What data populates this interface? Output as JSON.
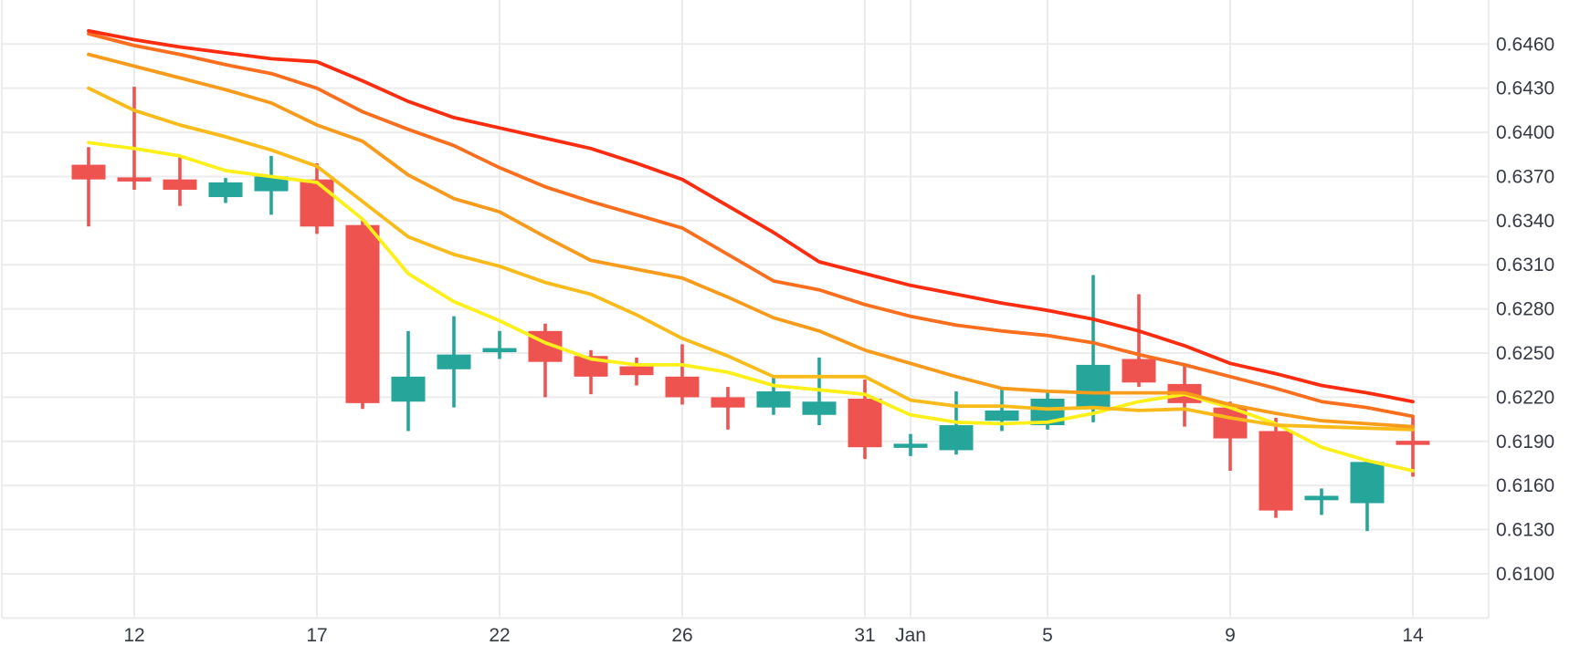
{
  "colors": {
    "background": "#ffffff",
    "grid": "#ececec",
    "axis_text": "#363a45",
    "candle_up": "#26a69a",
    "candle_down": "#ef5350"
  },
  "chart_data": {
    "type": "candlestick",
    "title": "",
    "xlabel": "",
    "ylabel": "",
    "grid": true,
    "legend_position": "none",
    "y_axis": {
      "side": "right",
      "labels": [
        "0.6460",
        "0.6430",
        "0.6400",
        "0.6370",
        "0.6340",
        "0.6310",
        "0.6280",
        "0.6250",
        "0.6220",
        "0.6190",
        "0.6160",
        "0.6130",
        "0.6100"
      ],
      "step": 0.003,
      "ylim": [
        0.607,
        0.649
      ]
    },
    "x_axis": {
      "ticks": [
        {
          "candle_index": 1,
          "label": "12"
        },
        {
          "candle_index": 5,
          "label": "17"
        },
        {
          "candle_index": 9,
          "label": "22"
        },
        {
          "candle_index": 13,
          "label": "26"
        },
        {
          "candle_index": 17,
          "label": "31"
        },
        {
          "candle_index": 18,
          "label": "Jan"
        },
        {
          "candle_index": 21,
          "label": "5"
        },
        {
          "candle_index": 25,
          "label": "9"
        },
        {
          "candle_index": 29,
          "label": "14"
        }
      ]
    },
    "candles": [
      {
        "o": 0.6378,
        "h": 0.639,
        "l": 0.6336,
        "c": 0.6368
      },
      {
        "o": 0.6369,
        "h": 0.6431,
        "l": 0.6361,
        "c": 0.6367
      },
      {
        "o": 0.6368,
        "h": 0.6383,
        "l": 0.635,
        "c": 0.6361
      },
      {
        "o": 0.6356,
        "h": 0.6369,
        "l": 0.6352,
        "c": 0.6366
      },
      {
        "o": 0.636,
        "h": 0.6384,
        "l": 0.6344,
        "c": 0.637
      },
      {
        "o": 0.6368,
        "h": 0.6379,
        "l": 0.6331,
        "c": 0.6336
      },
      {
        "o": 0.6337,
        "h": 0.634,
        "l": 0.6212,
        "c": 0.6216
      },
      {
        "o": 0.6217,
        "h": 0.6265,
        "l": 0.6197,
        "c": 0.6234
      },
      {
        "o": 0.6239,
        "h": 0.6275,
        "l": 0.6213,
        "c": 0.6249
      },
      {
        "o": 0.6251,
        "h": 0.6265,
        "l": 0.6246,
        "c": 0.6253
      },
      {
        "o": 0.6265,
        "h": 0.627,
        "l": 0.622,
        "c": 0.6244
      },
      {
        "o": 0.6248,
        "h": 0.6252,
        "l": 0.6222,
        "c": 0.6234
      },
      {
        "o": 0.6241,
        "h": 0.6247,
        "l": 0.6228,
        "c": 0.6235
      },
      {
        "o": 0.6234,
        "h": 0.6256,
        "l": 0.6215,
        "c": 0.622
      },
      {
        "o": 0.622,
        "h": 0.6227,
        "l": 0.6198,
        "c": 0.6213
      },
      {
        "o": 0.6213,
        "h": 0.6234,
        "l": 0.6208,
        "c": 0.6224
      },
      {
        "o": 0.6208,
        "h": 0.6247,
        "l": 0.6201,
        "c": 0.6217
      },
      {
        "o": 0.6219,
        "h": 0.6232,
        "l": 0.6178,
        "c": 0.6186
      },
      {
        "o": 0.6186,
        "h": 0.6195,
        "l": 0.618,
        "c": 0.6188
      },
      {
        "o": 0.6184,
        "h": 0.6224,
        "l": 0.6181,
        "c": 0.6201
      },
      {
        "o": 0.6204,
        "h": 0.6226,
        "l": 0.6197,
        "c": 0.6211
      },
      {
        "o": 0.6201,
        "h": 0.6224,
        "l": 0.6198,
        "c": 0.6219
      },
      {
        "o": 0.6213,
        "h": 0.6303,
        "l": 0.6203,
        "c": 0.6242
      },
      {
        "o": 0.6246,
        "h": 0.629,
        "l": 0.6227,
        "c": 0.623
      },
      {
        "o": 0.6229,
        "h": 0.6243,
        "l": 0.62,
        "c": 0.6216
      },
      {
        "o": 0.6213,
        "h": 0.6217,
        "l": 0.617,
        "c": 0.6192
      },
      {
        "o": 0.6197,
        "h": 0.6206,
        "l": 0.6138,
        "c": 0.6143
      },
      {
        "o": 0.615,
        "h": 0.6158,
        "l": 0.614,
        "c": 0.6153
      },
      {
        "o": 0.6148,
        "h": 0.6178,
        "l": 0.6129,
        "c": 0.6176
      },
      {
        "o": 0.619,
        "h": 0.6207,
        "l": 0.6166,
        "c": 0.6188
      }
    ],
    "ma_lines": [
      {
        "name": "ma-ribbon-1-slowest",
        "color": "#fb2c0f",
        "values": [
          0.6469,
          0.6463,
          0.6458,
          0.6454,
          0.645,
          0.6448,
          0.6435,
          0.6421,
          0.641,
          0.6403,
          0.6396,
          0.6389,
          0.6379,
          0.6368,
          0.635,
          0.6332,
          0.6312,
          0.6304,
          0.6296,
          0.629,
          0.6284,
          0.6279,
          0.6273,
          0.6265,
          0.6255,
          0.6243,
          0.6236,
          0.6228,
          0.6223,
          0.6217
        ]
      },
      {
        "name": "ma-ribbon-2",
        "color": "#fa6e1e",
        "values": [
          0.6467,
          0.6459,
          0.6453,
          0.6446,
          0.644,
          0.643,
          0.6414,
          0.6402,
          0.6391,
          0.6376,
          0.6363,
          0.6353,
          0.6344,
          0.6335,
          0.6317,
          0.6299,
          0.6293,
          0.6283,
          0.6275,
          0.6269,
          0.6265,
          0.6262,
          0.6257,
          0.6249,
          0.6242,
          0.6234,
          0.6226,
          0.6217,
          0.6213,
          0.6207
        ]
      },
      {
        "name": "ma-ribbon-3",
        "color": "#f89b1b",
        "values": [
          0.6453,
          0.6445,
          0.6437,
          0.6429,
          0.642,
          0.6405,
          0.6394,
          0.6371,
          0.6355,
          0.6346,
          0.6329,
          0.6313,
          0.6307,
          0.6301,
          0.6288,
          0.6274,
          0.6265,
          0.6252,
          0.6243,
          0.6234,
          0.6226,
          0.6224,
          0.6223,
          0.6223,
          0.6223,
          0.6215,
          0.6209,
          0.6204,
          0.6202,
          0.62
        ]
      },
      {
        "name": "ma-ribbon-4",
        "color": "#f9bb1a",
        "values": [
          0.643,
          0.6415,
          0.6405,
          0.6397,
          0.6388,
          0.6377,
          0.6353,
          0.6329,
          0.6317,
          0.6309,
          0.6298,
          0.629,
          0.6276,
          0.626,
          0.6248,
          0.6234,
          0.6234,
          0.6234,
          0.6218,
          0.6214,
          0.6214,
          0.6212,
          0.6213,
          0.6211,
          0.6212,
          0.6206,
          0.6201,
          0.62,
          0.6199,
          0.6198
        ]
      },
      {
        "name": "ma-ribbon-5-fastest",
        "color": "#fdf01a",
        "values": [
          0.6393,
          0.6389,
          0.6384,
          0.6374,
          0.637,
          0.6366,
          0.6341,
          0.6304,
          0.6285,
          0.6272,
          0.6257,
          0.6246,
          0.6242,
          0.6242,
          0.6237,
          0.6228,
          0.6225,
          0.6222,
          0.6208,
          0.6203,
          0.6202,
          0.6203,
          0.6209,
          0.6217,
          0.6222,
          0.6213,
          0.6202,
          0.6186,
          0.6177,
          0.617
        ]
      }
    ]
  }
}
